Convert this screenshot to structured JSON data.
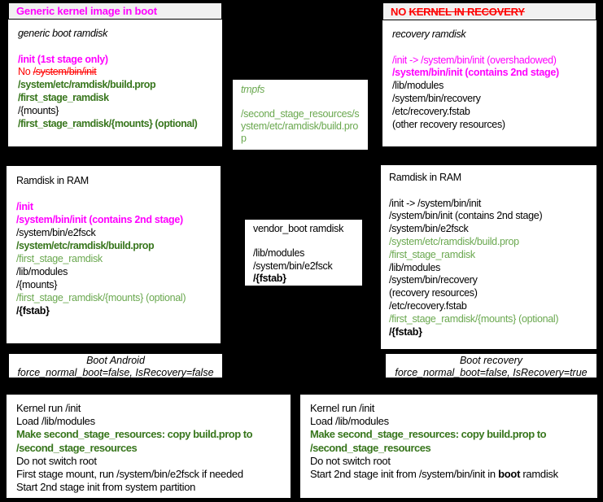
{
  "colors": {
    "canvas_bg": "#000000",
    "box_bg": "#ffffff",
    "header_bg": "#f1f1f1",
    "magenta": "#ff00ff",
    "red": "#ff0000",
    "green_dark": "#38761d",
    "green_light": "#6aa84f"
  },
  "boxes": {
    "generic_kernel": {
      "header": [
        [
          [
            "Generic kernel image in boot",
            "mb"
          ]
        ]
      ],
      "lines": [
        [
          [
            "generic boot ramdisk",
            "ki"
          ]
        ],
        [],
        [
          [
            "/init (1st stage only)",
            "mb"
          ]
        ],
        [
          [
            "No ",
            "r"
          ],
          [
            "/system/bin/init",
            "rs"
          ]
        ],
        [
          [
            "/system/etc/ramdisk/build.prop",
            "gb"
          ]
        ],
        [
          [
            "/first_stage_ramdisk",
            "gb"
          ]
        ],
        [
          [
            "/{mounts}",
            "k"
          ]
        ],
        [
          [
            "/first_stage_ramdisk/{mounts} (optional)",
            "gb"
          ]
        ]
      ]
    },
    "no_kernel_recovery": {
      "header": [
        [
          [
            "NO ",
            "rb"
          ],
          [
            "KERNEL IN RECOVERY",
            "rbs"
          ]
        ]
      ],
      "lines": [
        [
          [
            "recovery ramdisk",
            "ki"
          ]
        ],
        [],
        [
          [
            "/init -> /system/bin/init (overshadowed)",
            "m"
          ]
        ],
        [
          [
            "/system/bin/init (contains 2nd stage)",
            "mb"
          ]
        ],
        [
          [
            "/lib/modules",
            "k"
          ]
        ],
        [
          [
            "/system/bin/recovery",
            "k"
          ]
        ],
        [
          [
            "/etc/recovery.fstab",
            "k"
          ]
        ],
        [
          [
            "(other recovery resources)",
            "k"
          ]
        ]
      ]
    },
    "tmpfs": {
      "lines": [
        [
          [
            "tmpfs",
            "gi"
          ]
        ],
        [],
        [
          [
            "/second_stage_resources/system/etc/ramdisk/build.prop",
            "g"
          ]
        ]
      ]
    },
    "ramdisk_ram_boot": {
      "lines": [
        [
          [
            "Ramdisk in RAM",
            "k"
          ]
        ],
        [],
        [
          [
            "/init",
            "mb"
          ]
        ],
        [
          [
            "/system/bin/init (contains 2nd stage)",
            "mb"
          ]
        ],
        [
          [
            "/system/bin/e2fsck",
            "k"
          ]
        ],
        [
          [
            "/system/etc/ramdisk/build.prop",
            "gb"
          ]
        ],
        [
          [
            "/first_stage_ramdisk",
            "g"
          ]
        ],
        [
          [
            "/lib/modules",
            "k"
          ]
        ],
        [
          [
            "/{mounts}",
            "k"
          ]
        ],
        [
          [
            "/first_stage_ramdisk/{mounts} (optional)",
            "g"
          ]
        ],
        [
          [
            "/{fstab}",
            "kb"
          ]
        ]
      ]
    },
    "vendor_boot": {
      "lines": [
        [
          [
            "vendor_boot ramdisk",
            "k"
          ]
        ],
        [],
        [
          [
            "/lib/modules",
            "k"
          ]
        ],
        [
          [
            "/system/bin/e2fsck",
            "k"
          ]
        ],
        [
          [
            "/{fstab}",
            "kb"
          ]
        ]
      ]
    },
    "ramdisk_ram_recovery": {
      "lines": [
        [
          [
            "Ramdisk in RAM",
            "k"
          ]
        ],
        [],
        [
          [
            "/init -> /system/bin/init",
            "k"
          ]
        ],
        [
          [
            "/system/bin/init (contains 2nd stage)",
            "k"
          ]
        ],
        [
          [
            "/system/bin/e2fsck",
            "k"
          ]
        ],
        [
          [
            "/system/etc/ramdisk/build.prop",
            "g"
          ]
        ],
        [
          [
            "/first_stage_ramdisk",
            "g"
          ]
        ],
        [
          [
            "/lib/modules",
            "k"
          ]
        ],
        [
          [
            "/system/bin/recovery",
            "k"
          ]
        ],
        [
          [
            "(recovery resources)",
            "k"
          ]
        ],
        [
          [
            "/etc/recovery.fstab",
            "k"
          ]
        ],
        [
          [
            "/first_stage_ramdisk/{mounts} (optional)",
            "g"
          ]
        ],
        [
          [
            "/{fstab}",
            "kb"
          ]
        ]
      ]
    },
    "boot_android_label": {
      "lines": [
        [
          [
            "Boot Android",
            "ki"
          ]
        ],
        [
          [
            "force_normal_boot=false, IsRecovery=false",
            "ki"
          ]
        ]
      ]
    },
    "boot_recovery_label": {
      "lines": [
        [
          [
            "Boot recovery",
            "ki"
          ]
        ],
        [
          [
            "force_normal_boot=false, IsRecovery=true",
            "ki"
          ]
        ]
      ]
    },
    "boot_android_steps": {
      "lines": [
        [
          [
            "Kernel run /init",
            "k"
          ]
        ],
        [
          [
            "Load /lib/modules",
            "k"
          ]
        ],
        [
          [
            "Make second_stage_resources: copy build.prop to",
            "gb"
          ]
        ],
        [
          [
            "/second_stage_resources",
            "gb"
          ]
        ],
        [
          [
            "Do not switch root",
            "k"
          ]
        ],
        [
          [
            "First stage mount, run /system/bin/e2fsck if needed",
            "k"
          ]
        ],
        [
          [
            "Start 2nd stage init from system partition",
            "k"
          ]
        ]
      ]
    },
    "boot_recovery_steps": {
      "lines": [
        [
          [
            "Kernel run /init",
            "k"
          ]
        ],
        [
          [
            "Load /lib/modules",
            "k"
          ]
        ],
        [
          [
            "Make second_stage_resources: copy build.prop to",
            "gb"
          ]
        ],
        [
          [
            "/second_stage_resources",
            "gb"
          ]
        ],
        [
          [
            "Do not switch root",
            "k"
          ]
        ],
        [
          [
            "Start 2nd stage init from /system/bin/init in ",
            "k"
          ],
          [
            "boot",
            "kb"
          ],
          [
            " ramdisk",
            "k"
          ]
        ]
      ]
    }
  }
}
